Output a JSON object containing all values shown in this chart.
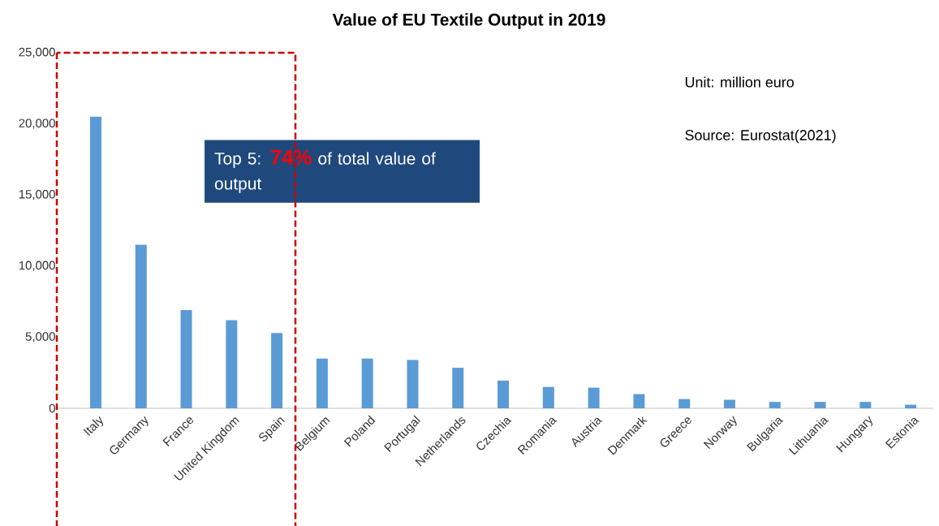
{
  "chart_data": {
    "type": "bar",
    "title": "Value of EU Textile Output in 2019",
    "categories": [
      "Italy",
      "Germany",
      "France",
      "United Kingdom",
      "Spain",
      "Belgium",
      "Poland",
      "Portugal",
      "Netherlands",
      "Czechia",
      "Romania",
      "Austria",
      "Denmark",
      "Greece",
      "Norway",
      "Bulgaria",
      "Lithuania",
      "Hungary",
      "Estonia"
    ],
    "values": [
      20500,
      11500,
      6900,
      6200,
      5300,
      3500,
      3500,
      3400,
      2850,
      1950,
      1500,
      1450,
      1000,
      650,
      600,
      450,
      450,
      450,
      250
    ],
    "color": "#5b9bd5",
    "ylim": [
      0,
      25000
    ],
    "yticks": [
      {
        "value": 0,
        "label": "0"
      },
      {
        "value": 5000,
        "label": "5,000"
      },
      {
        "value": 10000,
        "label": "10,000"
      },
      {
        "value": 15000,
        "label": "15,000"
      },
      {
        "value": 20000,
        "label": "20,000"
      },
      {
        "value": 25000,
        "label": "25,000"
      }
    ],
    "annotations": [
      "Unit: million euro",
      "Source: Eurostat(2021)",
      "Top 5: **74%** of total value of output"
    ]
  }
}
